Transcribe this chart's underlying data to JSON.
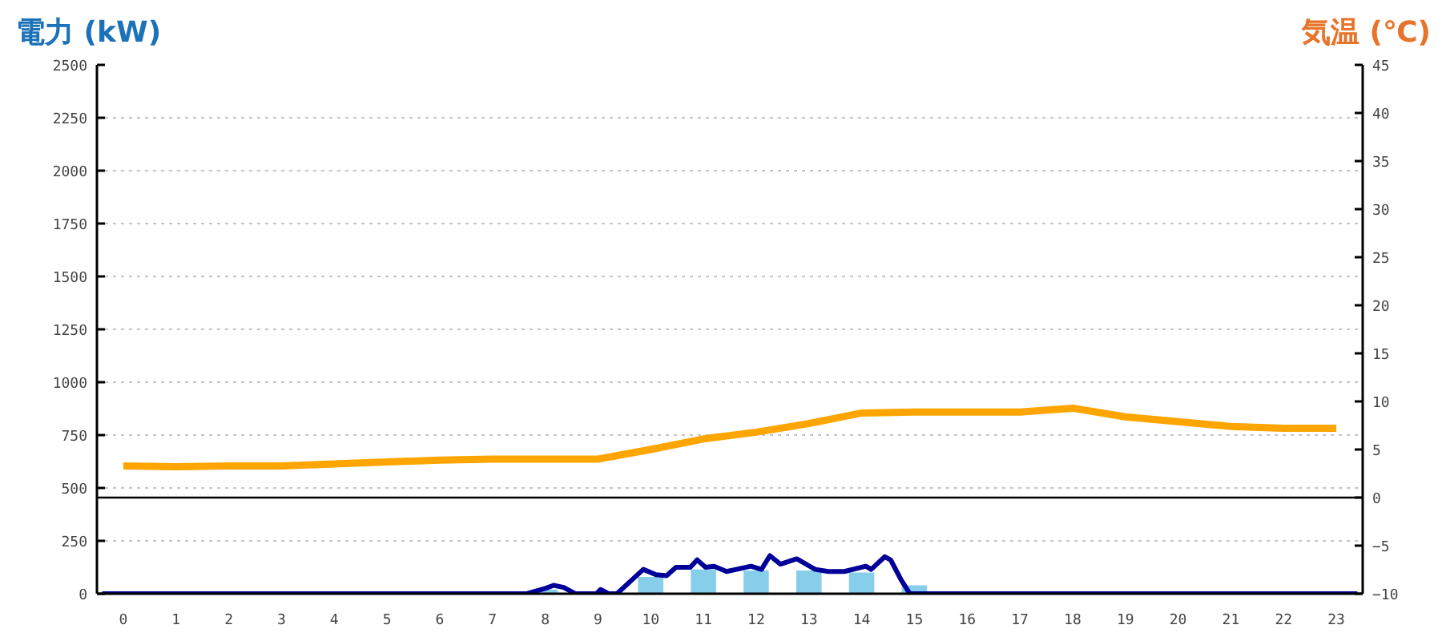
{
  "chart_data": {
    "type": "bar",
    "ylabel": "電力 (kW)",
    "y2label": "気温 (℃)",
    "xlim": [
      -0.5,
      23.5
    ],
    "xticks": [
      0,
      1,
      2,
      3,
      4,
      5,
      6,
      7,
      8,
      9,
      10,
      11,
      12,
      13,
      14,
      15,
      16,
      17,
      18,
      19,
      20,
      21,
      22,
      23
    ],
    "ylim": [
      0,
      2500
    ],
    "yticks": [
      0,
      250,
      500,
      750,
      1000,
      1250,
      1500,
      1750,
      2000,
      2250,
      2500
    ],
    "y2lim": [
      -10,
      45
    ],
    "y2ticks": [
      -10,
      -5,
      0,
      5,
      10,
      15,
      20,
      25,
      30,
      35,
      40,
      45
    ],
    "grid": "y",
    "ref_lines": [
      {
        "axis": "y2",
        "value": 0,
        "color": "#000000"
      }
    ],
    "series": [
      {
        "color": "#87ceeb",
        "x": [
          0,
          1,
          2,
          3,
          4,
          5,
          6,
          7,
          8,
          9,
          10,
          11,
          12,
          13,
          14,
          15,
          16,
          17,
          18,
          19,
          20,
          21,
          22,
          23
        ],
        "values": [
          0,
          0,
          0,
          0,
          0,
          0,
          0,
          0,
          20,
          10,
          80,
          115,
          110,
          110,
          100,
          40,
          0,
          0,
          0,
          0,
          0,
          0,
          0,
          0
        ]
      },
      {
        "type": "line",
        "color": "#000099",
        "x": [
          -0.4,
          7.65,
          8.0,
          8.16,
          8.35,
          8.57,
          8.97,
          9.05,
          9.2,
          9.36,
          9.86,
          10.1,
          10.3,
          10.48,
          10.75,
          10.88,
          11.04,
          11.2,
          11.44,
          11.9,
          12.1,
          12.26,
          12.46,
          12.77,
          13.12,
          13.37,
          13.67,
          14.08,
          14.18,
          14.44,
          14.55,
          14.75,
          14.9,
          15.0,
          23.4
        ],
        "values": [
          0,
          0,
          25,
          40,
          30,
          0,
          0,
          20,
          0,
          0,
          115,
          90,
          85,
          125,
          125,
          160,
          125,
          130,
          105,
          130,
          115,
          180,
          140,
          165,
          115,
          105,
          105,
          130,
          115,
          175,
          160,
          65,
          5,
          0,
          0
        ]
      },
      {
        "type": "line",
        "color": "#ffa500",
        "axis": "y2",
        "x": [
          0,
          1,
          2,
          3,
          4,
          5,
          6,
          7,
          8,
          9,
          10,
          11,
          12,
          13,
          14,
          15,
          16,
          17,
          18,
          19,
          20,
          21,
          22,
          23
        ],
        "values": [
          3.3,
          3.2,
          3.3,
          3.3,
          3.5,
          3.7,
          3.9,
          4.0,
          4.0,
          4.0,
          5.0,
          6.1,
          6.8,
          7.7,
          8.8,
          8.9,
          8.9,
          8.9,
          9.3,
          8.4,
          7.9,
          7.4,
          7.2,
          7.2
        ]
      }
    ]
  }
}
